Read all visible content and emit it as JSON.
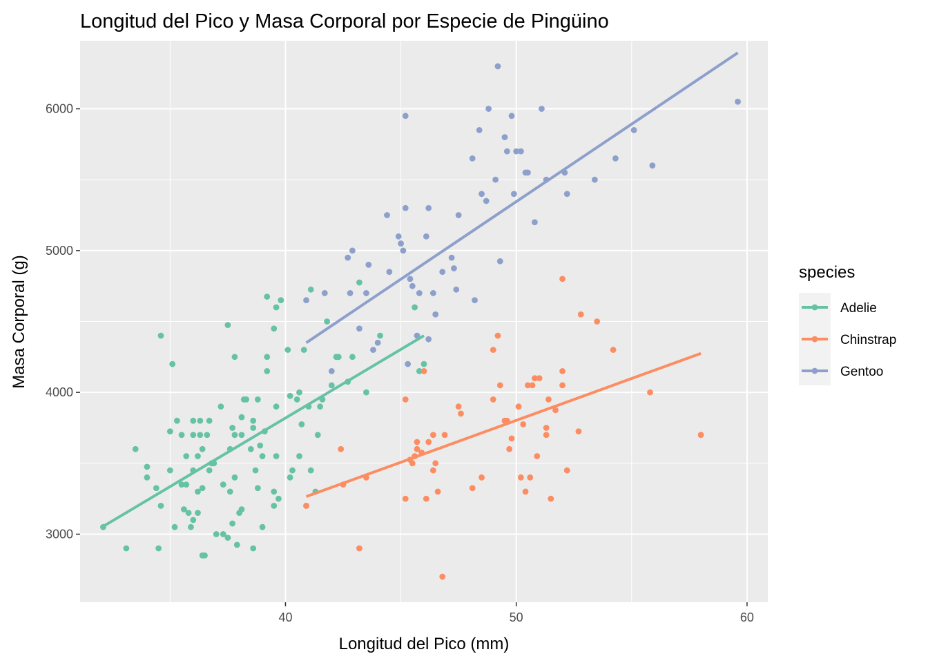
{
  "chart_data": {
    "type": "scatter",
    "title": "Longitud del Pico y Masa Corporal por Especie de Pingüino",
    "xlabel": "Longitud del Pico (mm)",
    "ylabel": "Masa Corporal (g)",
    "xlim": [
      31.1,
      60.9
    ],
    "ylim": [
      2520,
      6480
    ],
    "x_ticks": [
      40,
      50,
      60
    ],
    "y_ticks": [
      3000,
      4000,
      5000,
      6000
    ],
    "grid": true,
    "legend": {
      "title": "species",
      "position": "right"
    },
    "series": [
      {
        "name": "Adelie",
        "color": "#66c2a5",
        "trend": [
          [
            32.1,
            3055
          ],
          [
            46.0,
            4400
          ]
        ],
        "points": [
          [
            32.1,
            3050
          ],
          [
            33.1,
            2900
          ],
          [
            33.5,
            3600
          ],
          [
            34.0,
            3475
          ],
          [
            34.0,
            3400
          ],
          [
            34.4,
            3325
          ],
          [
            34.5,
            2900
          ],
          [
            34.6,
            3200
          ],
          [
            34.6,
            4400
          ],
          [
            35.0,
            3450
          ],
          [
            35.0,
            3725
          ],
          [
            35.1,
            4200
          ],
          [
            35.2,
            3050
          ],
          [
            35.3,
            3800
          ],
          [
            35.5,
            3350
          ],
          [
            35.5,
            3700
          ],
          [
            35.6,
            3175
          ],
          [
            35.7,
            3350
          ],
          [
            35.7,
            3550
          ],
          [
            35.8,
            3150
          ],
          [
            35.9,
            3050
          ],
          [
            36.0,
            3800
          ],
          [
            36.0,
            3450
          ],
          [
            36.0,
            3100
          ],
          [
            36.0,
            3700
          ],
          [
            36.2,
            3300
          ],
          [
            36.2,
            3550
          ],
          [
            36.2,
            3150
          ],
          [
            36.3,
            3800
          ],
          [
            36.3,
            3700
          ],
          [
            36.4,
            3600
          ],
          [
            36.4,
            3325
          ],
          [
            36.4,
            2850
          ],
          [
            36.5,
            2850
          ],
          [
            36.6,
            3700
          ],
          [
            36.7,
            3450
          ],
          [
            36.7,
            3800
          ],
          [
            36.8,
            3500
          ],
          [
            36.9,
            3500
          ],
          [
            37.0,
            3000
          ],
          [
            37.2,
            3900
          ],
          [
            37.3,
            3000
          ],
          [
            37.3,
            3350
          ],
          [
            37.5,
            4475
          ],
          [
            37.5,
            2975
          ],
          [
            37.6,
            3600
          ],
          [
            37.6,
            3300
          ],
          [
            37.7,
            3750
          ],
          [
            37.7,
            3075
          ],
          [
            37.8,
            3700
          ],
          [
            37.8,
            4250
          ],
          [
            37.8,
            3400
          ],
          [
            37.9,
            2925
          ],
          [
            38.0,
            3150
          ],
          [
            38.1,
            3700
          ],
          [
            38.1,
            3175
          ],
          [
            38.1,
            3825
          ],
          [
            38.2,
            3950
          ],
          [
            38.3,
            3950
          ],
          [
            38.5,
            3600
          ],
          [
            38.6,
            3800
          ],
          [
            38.6,
            3750
          ],
          [
            38.6,
            2900
          ],
          [
            38.7,
            3450
          ],
          [
            38.8,
            3950
          ],
          [
            38.8,
            3325
          ],
          [
            38.9,
            3625
          ],
          [
            39.0,
            3550
          ],
          [
            39.0,
            3050
          ],
          [
            39.1,
            3725
          ],
          [
            39.2,
            4675
          ],
          [
            39.2,
            4150
          ],
          [
            39.2,
            4250
          ],
          [
            39.5,
            3300
          ],
          [
            39.5,
            3200
          ],
          [
            39.5,
            4450
          ],
          [
            39.6,
            3550
          ],
          [
            39.6,
            3900
          ],
          [
            39.6,
            4600
          ],
          [
            39.7,
            3250
          ],
          [
            39.8,
            4650
          ],
          [
            40.1,
            4300
          ],
          [
            40.2,
            3400
          ],
          [
            40.2,
            3975
          ],
          [
            40.3,
            3450
          ],
          [
            40.5,
            3950
          ],
          [
            40.6,
            3550
          ],
          [
            40.6,
            4000
          ],
          [
            40.7,
            3775
          ],
          [
            40.8,
            4300
          ],
          [
            40.9,
            3200
          ],
          [
            41.0,
            3900
          ],
          [
            41.1,
            4725
          ],
          [
            41.1,
            3450
          ],
          [
            41.3,
            3300
          ],
          [
            41.4,
            3700
          ],
          [
            41.5,
            3900
          ],
          [
            41.6,
            3950
          ],
          [
            41.8,
            4500
          ],
          [
            42.0,
            4050
          ],
          [
            42.2,
            4250
          ],
          [
            42.3,
            4250
          ],
          [
            42.7,
            4075
          ],
          [
            42.9,
            4250
          ],
          [
            43.2,
            4775
          ],
          [
            43.5,
            4000
          ],
          [
            44.1,
            4400
          ],
          [
            45.6,
            4600
          ],
          [
            45.8,
            4150
          ],
          [
            46.0,
            4200
          ]
        ]
      },
      {
        "name": "Chinstrap",
        "color": "#fc8d62",
        "trend": [
          [
            40.9,
            3265
          ],
          [
            58.0,
            4275
          ]
        ],
        "points": [
          [
            40.9,
            3200
          ],
          [
            42.4,
            3600
          ],
          [
            42.5,
            3350
          ],
          [
            43.2,
            2900
          ],
          [
            43.5,
            3400
          ],
          [
            45.2,
            3250
          ],
          [
            45.2,
            3950
          ],
          [
            45.4,
            3525
          ],
          [
            45.5,
            3500
          ],
          [
            45.6,
            3550
          ],
          [
            45.7,
            3650
          ],
          [
            45.7,
            3600
          ],
          [
            45.9,
            3575
          ],
          [
            46.0,
            4150
          ],
          [
            46.1,
            3250
          ],
          [
            46.2,
            3650
          ],
          [
            46.4,
            3700
          ],
          [
            46.5,
            3500
          ],
          [
            46.4,
            3450
          ],
          [
            46.6,
            3300
          ],
          [
            46.8,
            2700
          ],
          [
            46.9,
            3700
          ],
          [
            47.5,
            3900
          ],
          [
            47.6,
            3850
          ],
          [
            48.1,
            3325
          ],
          [
            48.5,
            3400
          ],
          [
            49.0,
            4300
          ],
          [
            49.0,
            3950
          ],
          [
            49.2,
            4400
          ],
          [
            49.3,
            4050
          ],
          [
            49.5,
            3800
          ],
          [
            49.6,
            3800
          ],
          [
            49.7,
            3600
          ],
          [
            49.8,
            3675
          ],
          [
            50.1,
            3900
          ],
          [
            50.2,
            3400
          ],
          [
            50.3,
            3775
          ],
          [
            50.4,
            3300
          ],
          [
            50.5,
            4050
          ],
          [
            50.6,
            3400
          ],
          [
            50.7,
            4050
          ],
          [
            50.8,
            4100
          ],
          [
            50.9,
            3550
          ],
          [
            51.0,
            4100
          ],
          [
            51.3,
            3750
          ],
          [
            51.3,
            3700
          ],
          [
            51.4,
            3950
          ],
          [
            51.5,
            3250
          ],
          [
            51.7,
            3875
          ],
          [
            52.0,
            4800
          ],
          [
            52.0,
            4150
          ],
          [
            52.0,
            4050
          ],
          [
            52.2,
            3450
          ],
          [
            52.7,
            3725
          ],
          [
            52.8,
            4550
          ],
          [
            53.5,
            4500
          ],
          [
            54.2,
            4300
          ],
          [
            55.8,
            4000
          ],
          [
            58.0,
            3700
          ]
        ]
      },
      {
        "name": "Gentoo",
        "color": "#8da0cb",
        "trend": [
          [
            40.9,
            4350
          ],
          [
            59.6,
            6395
          ]
        ],
        "points": [
          [
            40.9,
            4650
          ],
          [
            41.7,
            4700
          ],
          [
            42.0,
            4150
          ],
          [
            42.7,
            4950
          ],
          [
            42.8,
            4700
          ],
          [
            42.9,
            5000
          ],
          [
            43.2,
            4450
          ],
          [
            43.5,
            4700
          ],
          [
            43.6,
            4900
          ],
          [
            43.8,
            4300
          ],
          [
            44.0,
            4350
          ],
          [
            44.4,
            5250
          ],
          [
            44.5,
            4850
          ],
          [
            44.9,
            5100
          ],
          [
            45.0,
            5050
          ],
          [
            45.1,
            5000
          ],
          [
            45.2,
            5300
          ],
          [
            45.2,
            5950
          ],
          [
            45.3,
            4200
          ],
          [
            45.4,
            4800
          ],
          [
            45.5,
            4750
          ],
          [
            45.7,
            4400
          ],
          [
            45.8,
            4700
          ],
          [
            46.1,
            5100
          ],
          [
            46.2,
            5300
          ],
          [
            46.2,
            4375
          ],
          [
            46.4,
            4700
          ],
          [
            46.5,
            4550
          ],
          [
            46.8,
            4850
          ],
          [
            47.2,
            4950
          ],
          [
            47.3,
            4875
          ],
          [
            47.4,
            4725
          ],
          [
            47.5,
            5250
          ],
          [
            48.1,
            5650
          ],
          [
            48.2,
            4650
          ],
          [
            48.4,
            5850
          ],
          [
            48.5,
            5400
          ],
          [
            48.7,
            5350
          ],
          [
            48.8,
            6000
          ],
          [
            49.1,
            5500
          ],
          [
            49.2,
            6300
          ],
          [
            49.3,
            4925
          ],
          [
            49.5,
            5800
          ],
          [
            49.6,
            5700
          ],
          [
            49.8,
            5950
          ],
          [
            49.9,
            5400
          ],
          [
            50.0,
            5700
          ],
          [
            50.2,
            5700
          ],
          [
            50.4,
            5550
          ],
          [
            50.5,
            5550
          ],
          [
            50.8,
            5200
          ],
          [
            51.1,
            6000
          ],
          [
            51.3,
            5500
          ],
          [
            52.1,
            5550
          ],
          [
            52.2,
            5400
          ],
          [
            53.4,
            5500
          ],
          [
            54.3,
            5650
          ],
          [
            55.1,
            5850
          ],
          [
            55.9,
            5600
          ],
          [
            59.6,
            6050
          ]
        ]
      }
    ]
  }
}
